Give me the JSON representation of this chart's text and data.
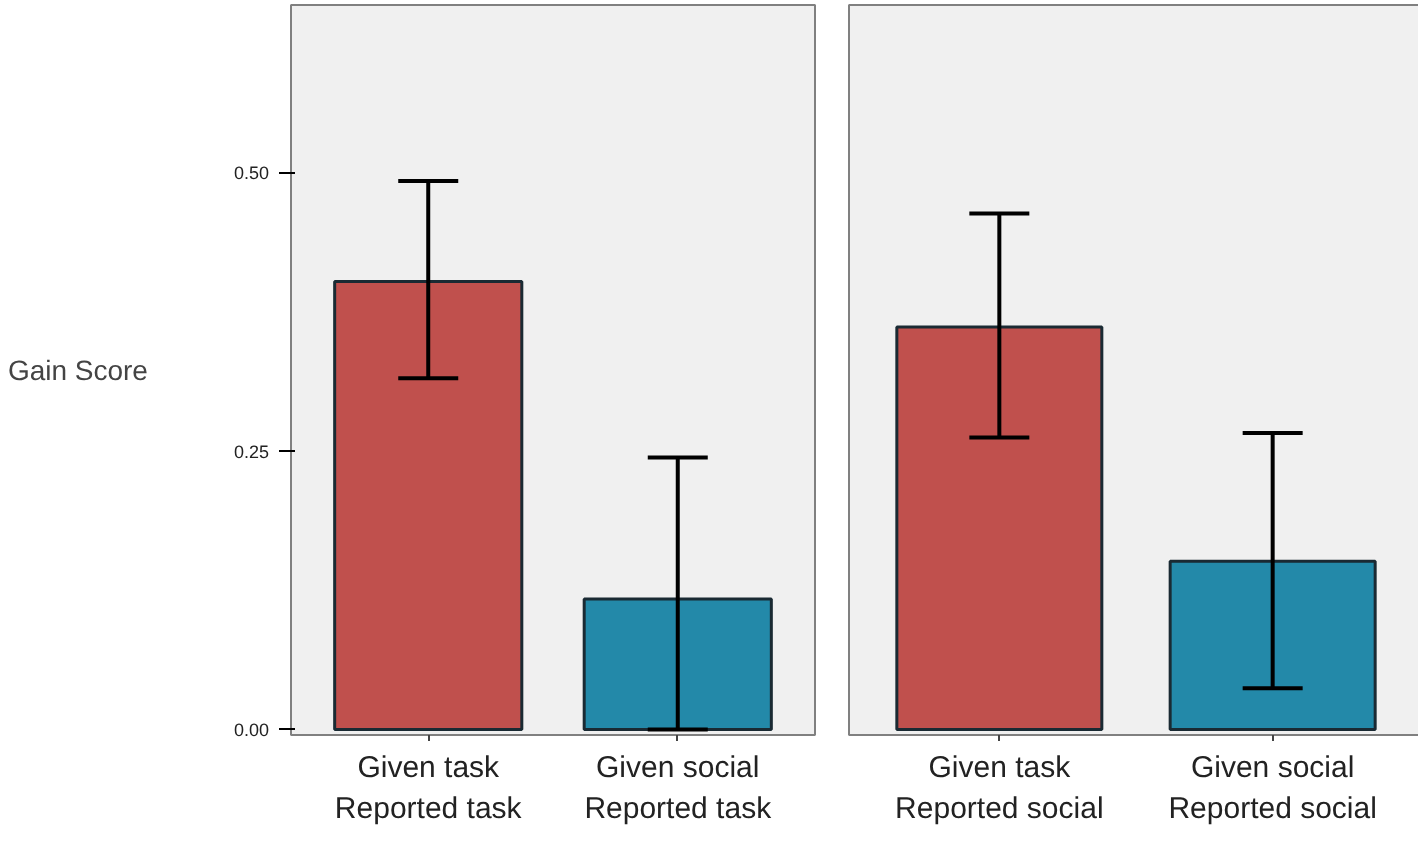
{
  "chart_data": [
    {
      "type": "bar",
      "ylabel": "Gain Score",
      "categories": [
        "Given task\nReported task",
        "Given social\nReported task"
      ],
      "values": [
        0.402,
        0.117
      ],
      "colors": [
        "#c0504d",
        "#2389a9"
      ],
      "errors": [
        [
          0.315,
          0.492
        ],
        [
          0.0,
          0.244
        ]
      ],
      "ylim": [
        -0.005,
        0.65
      ],
      "yticks": [
        {
          "value": 0,
          "label": "0.00"
        },
        {
          "value": 0.25,
          "label": "0.25"
        },
        {
          "value": 0.5,
          "label": "0.50"
        }
      ],
      "grid": false
    },
    {
      "type": "bar",
      "categories": [
        "Given task\nReported social",
        "Given social\nReported social"
      ],
      "values": [
        0.361,
        0.151
      ],
      "colors": [
        "#c0504d",
        "#2389a9"
      ],
      "errors": [
        [
          0.262,
          0.463
        ],
        [
          0.037,
          0.266
        ]
      ],
      "ylim": [
        -0.005,
        0.65
      ],
      "grid": false,
      "tick_labels": "x"
    }
  ]
}
